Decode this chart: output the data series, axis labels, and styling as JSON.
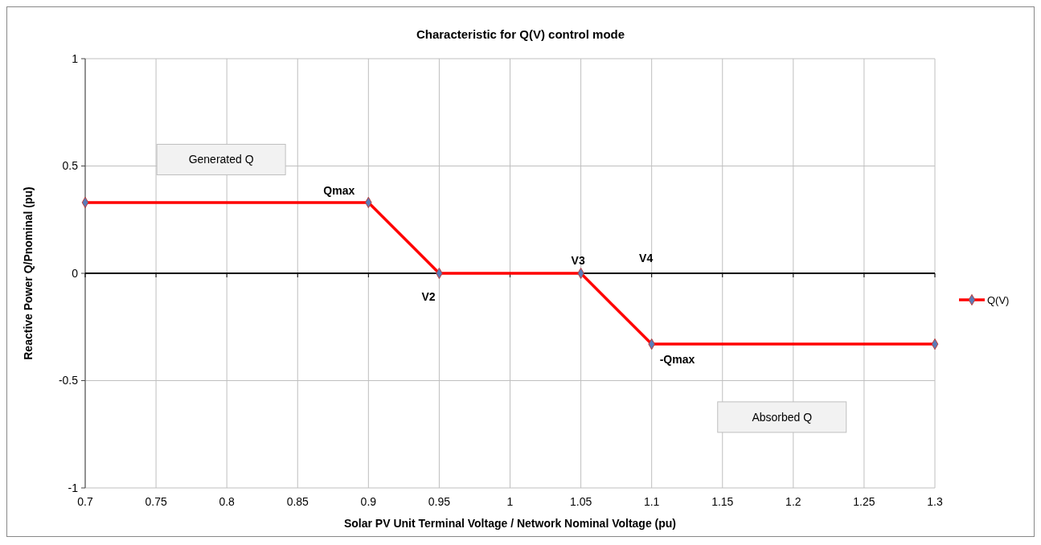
{
  "chart_data": {
    "type": "line",
    "title": "Characteristic for Q(V) control mode",
    "xlabel": "Solar PV Unit Terminal Voltage / Network Nominal Voltage (pu)",
    "ylabel": "Reactive Power Q/Pnominal (pu)",
    "x": [
      0.7,
      0.9,
      0.95,
      1.05,
      1.1,
      1.3
    ],
    "series": [
      {
        "name": "Q(V)",
        "color": "#ff0000",
        "values": [
          0.33,
          0.33,
          0,
          0,
          -0.33,
          -0.33
        ]
      }
    ],
    "xlim": [
      0.7,
      1.3
    ],
    "xticks": [
      0.7,
      0.75,
      0.8,
      0.85,
      0.9,
      0.95,
      1,
      1.05,
      1.1,
      1.15,
      1.2,
      1.25,
      1.3
    ],
    "ylim": [
      -1,
      1
    ],
    "yticks": [
      -1,
      -0.5,
      0,
      0.5,
      1
    ],
    "grid": true,
    "legend": "right",
    "marker": "diamond",
    "line_style": "solid",
    "annotations": [
      {
        "text": "Qmax",
        "x": 0.9,
        "y": 0.33
      },
      {
        "text": "V2",
        "x": 0.95,
        "y": 0
      },
      {
        "text": "V3",
        "x": 1.05,
        "y": 0
      },
      "V4",
      {
        "text": "-Qmax",
        "x": 1.1,
        "y": -0.33
      },
      "Generated Q",
      "Absorbed Q"
    ]
  }
}
